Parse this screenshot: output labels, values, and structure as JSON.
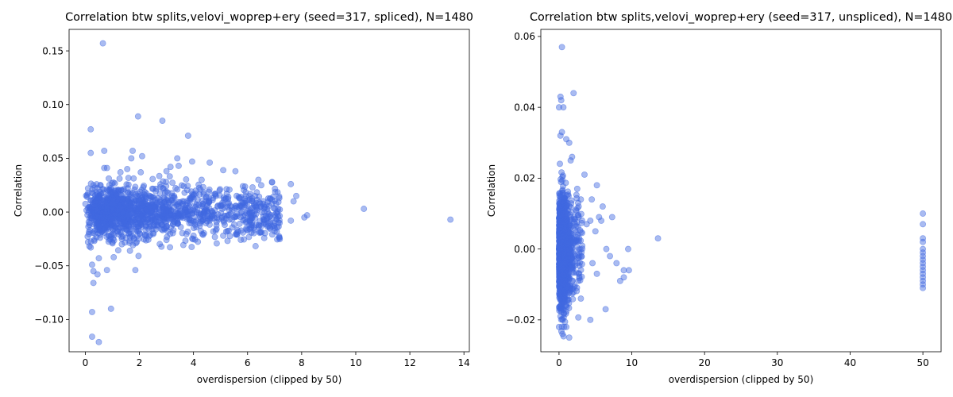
{
  "colors": {
    "points": "#4169e1",
    "axes": "#000000",
    "background": "#ffffff"
  },
  "chart_data": [
    {
      "type": "scatter",
      "title": "Correlation btw splits,velovi_woprep+ery (seed=317, spliced), N=1480",
      "xlabel": "overdispersion (clipped by 50)",
      "ylabel": "Correlation",
      "xlim": [
        -0.6,
        14.2
      ],
      "ylim": [
        -0.13,
        0.17
      ],
      "xticks": [
        0,
        2,
        4,
        6,
        8,
        10,
        12,
        14
      ],
      "xtick_labels": [
        "0",
        "2",
        "4",
        "6",
        "8",
        "10",
        "12",
        "14"
      ],
      "yticks": [
        -0.1,
        -0.05,
        0.0,
        0.05,
        0.1,
        0.15
      ],
      "ytick_labels": [
        "−0.10",
        "−0.05",
        "0.00",
        "0.05",
        "0.10",
        "0.15"
      ],
      "grid": false,
      "marker_alpha": 0.45,
      "points": [
        [
          0.65,
          0.157
        ],
        [
          1.95,
          0.089
        ],
        [
          2.85,
          0.085
        ],
        [
          0.2,
          0.077
        ],
        [
          3.8,
          0.071
        ],
        [
          1.75,
          0.057
        ],
        [
          0.7,
          0.057
        ],
        [
          0.2,
          0.055
        ],
        [
          2.1,
          0.052
        ],
        [
          1.7,
          0.05
        ],
        [
          3.4,
          0.05
        ],
        [
          4.6,
          0.046
        ],
        [
          3.95,
          0.047
        ],
        [
          3.45,
          0.043
        ],
        [
          0.7,
          0.041
        ],
        [
          0.8,
          0.041
        ],
        [
          1.55,
          0.04
        ],
        [
          5.1,
          0.039
        ],
        [
          5.55,
          0.038
        ],
        [
          3.0,
          0.038
        ],
        [
          3.15,
          0.042
        ],
        [
          1.3,
          0.037
        ],
        [
          2.05,
          0.037
        ],
        [
          4.3,
          0.03
        ],
        [
          7.6,
          0.026
        ],
        [
          6.4,
          0.03
        ],
        [
          0.3,
          0.025
        ],
        [
          0.1,
          0.022
        ],
        [
          7.8,
          0.015
        ],
        [
          7.7,
          0.01
        ],
        [
          8.2,
          -0.003
        ],
        [
          8.1,
          -0.005
        ],
        [
          7.6,
          -0.008
        ],
        [
          10.3,
          0.003
        ],
        [
          13.5,
          -0.007
        ],
        [
          7.0,
          -0.018
        ],
        [
          6.0,
          -0.017
        ],
        [
          5.6,
          -0.021
        ],
        [
          5.1,
          -0.022
        ],
        [
          4.0,
          -0.022
        ],
        [
          3.0,
          -0.026
        ],
        [
          2.2,
          -0.021
        ],
        [
          0.1,
          -0.028
        ],
        [
          1.0,
          -0.028
        ],
        [
          1.35,
          -0.03
        ],
        [
          0.2,
          -0.033
        ],
        [
          1.65,
          -0.036
        ],
        [
          1.35,
          -0.025
        ],
        [
          1.9,
          -0.028
        ],
        [
          1.8,
          -0.025
        ],
        [
          0.5,
          -0.043
        ],
        [
          1.05,
          -0.042
        ],
        [
          0.25,
          -0.049
        ],
        [
          0.3,
          -0.055
        ],
        [
          0.45,
          -0.058
        ],
        [
          0.8,
          -0.054
        ],
        [
          1.85,
          -0.054
        ],
        [
          0.3,
          -0.066
        ],
        [
          0.95,
          -0.09
        ],
        [
          0.25,
          -0.093
        ],
        [
          0.25,
          -0.116
        ],
        [
          0.5,
          -0.121
        ],
        [
          0.35,
          -0.02
        ],
        [
          0.55,
          -0.015
        ],
        [
          0.15,
          -0.012
        ]
      ],
      "cluster": {
        "x_range": [
          0.0,
          7.2
        ],
        "density_center": 2.5,
        "y_spread": 0.012,
        "count": 1415
      }
    },
    {
      "type": "scatter",
      "title": "Correlation btw splits,velovi_woprep+ery (seed=317, unspliced), N=1480",
      "xlabel": "overdispersion (clipped by 50)",
      "ylabel": "Correlation",
      "xlim": [
        -2.5,
        52.5
      ],
      "ylim": [
        -0.029,
        0.062
      ],
      "xticks": [
        0,
        10,
        20,
        30,
        40,
        50
      ],
      "xtick_labels": [
        "0",
        "10",
        "20",
        "30",
        "40",
        "50"
      ],
      "yticks": [
        -0.02,
        0.0,
        0.02,
        0.04,
        0.06
      ],
      "ytick_labels": [
        "−0.02",
        "0.00",
        "0.02",
        "0.04",
        "0.06"
      ],
      "grid": false,
      "marker_alpha": 0.45,
      "points": [
        [
          0.4,
          0.057
        ],
        [
          2.0,
          0.044
        ],
        [
          0.2,
          0.043
        ],
        [
          0.3,
          0.042
        ],
        [
          0.0,
          0.04
        ],
        [
          0.6,
          0.04
        ],
        [
          0.4,
          0.033
        ],
        [
          0.2,
          0.032
        ],
        [
          1.0,
          0.031
        ],
        [
          1.4,
          0.03
        ],
        [
          1.8,
          0.026
        ],
        [
          1.6,
          0.025
        ],
        [
          3.5,
          0.021
        ],
        [
          5.2,
          0.018
        ],
        [
          2.5,
          0.017
        ],
        [
          3.0,
          0.014
        ],
        [
          4.5,
          0.014
        ],
        [
          6.0,
          0.012
        ],
        [
          5.5,
          0.009
        ],
        [
          7.3,
          0.009
        ],
        [
          5.8,
          0.008
        ],
        [
          4.3,
          0.008
        ],
        [
          3.8,
          0.007
        ],
        [
          9.5,
          0.0
        ],
        [
          7.0,
          -0.002
        ],
        [
          7.9,
          -0.004
        ],
        [
          8.9,
          -0.006
        ],
        [
          9.6,
          -0.006
        ],
        [
          8.4,
          -0.009
        ],
        [
          8.9,
          -0.008
        ],
        [
          6.4,
          -0.017
        ],
        [
          4.3,
          -0.02
        ],
        [
          1.4,
          -0.025
        ],
        [
          0.7,
          -0.022
        ],
        [
          1.0,
          -0.022
        ],
        [
          13.6,
          0.003
        ],
        [
          0.2,
          -0.019
        ],
        [
          0.5,
          -0.02
        ],
        [
          0.0,
          -0.022
        ],
        [
          3.0,
          -0.014
        ],
        [
          5.2,
          -0.007
        ],
        [
          4.6,
          -0.004
        ],
        [
          5.0,
          0.005
        ],
        [
          6.5,
          0.0
        ],
        [
          2.7,
          0.012
        ],
        [
          50.0,
          0.01
        ],
        [
          50.0,
          0.007
        ],
        [
          50.0,
          0.003
        ],
        [
          50.0,
          0.002
        ],
        [
          50.0,
          0.0
        ],
        [
          50.0,
          -0.001
        ],
        [
          50.0,
          -0.002
        ],
        [
          50.0,
          -0.003
        ],
        [
          50.0,
          -0.004
        ],
        [
          50.0,
          -0.005
        ],
        [
          50.0,
          -0.006
        ],
        [
          50.0,
          -0.007
        ],
        [
          50.0,
          -0.008
        ],
        [
          50.0,
          -0.009
        ],
        [
          50.0,
          -0.01
        ],
        [
          50.0,
          -0.011
        ]
      ],
      "cluster": {
        "x_range": [
          0.0,
          3.2
        ],
        "density_center": 0.6,
        "y_spread": 0.0075,
        "count": 1419
      }
    }
  ]
}
